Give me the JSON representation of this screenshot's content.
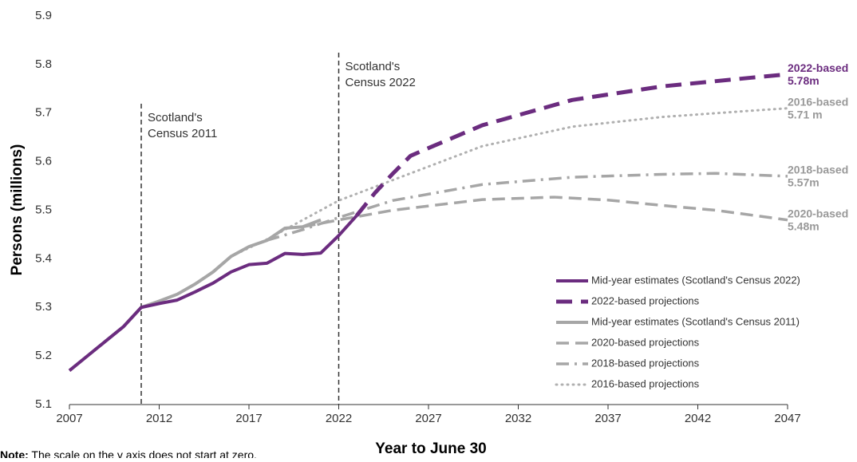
{
  "chart_data": {
    "type": "line",
    "y_label": "Persons (millions)",
    "x_label": "Year to June 30",
    "note_label": "Note:",
    "note": "The scale on the y axis does not start at zero.",
    "xlim": [
      2007,
      2047
    ],
    "xticks": [
      2007,
      2012,
      2017,
      2022,
      2027,
      2032,
      2037,
      2042,
      2047
    ],
    "ylim": [
      5.1,
      5.9
    ],
    "yticks": [
      5.1,
      5.2,
      5.3,
      5.4,
      5.5,
      5.6,
      5.7,
      5.8,
      5.9
    ],
    "grid": false,
    "annotations": [
      {
        "x": 2011,
        "lines": [
          "Scotland's",
          "Census 2011"
        ]
      },
      {
        "x": 2022,
        "lines": [
          "Scotland's",
          "Census 2022"
        ]
      }
    ],
    "series": [
      {
        "name": "Mid-year estimates (Scotland's Census 2022)",
        "color": "#6b2c7f",
        "style": "solid",
        "x": [
          2007,
          2008,
          2009,
          2010,
          2011,
          2012,
          2013,
          2014,
          2015,
          2016,
          2017,
          2018,
          2019,
          2020,
          2021,
          2022,
          2023
        ],
        "values": [
          5.17,
          5.2,
          5.23,
          5.26,
          5.3,
          5.308,
          5.315,
          5.332,
          5.35,
          5.373,
          5.388,
          5.391,
          5.411,
          5.409,
          5.412,
          5.448,
          5.489
        ]
      },
      {
        "name": "2022-based projections",
        "color": "#6b2c7f",
        "style": "dash-thick",
        "x": [
          2023,
          2024,
          2025,
          2026,
          2027,
          2030,
          2035,
          2040,
          2045,
          2047
        ],
        "values": [
          5.489,
          5.535,
          5.575,
          5.612,
          5.628,
          5.675,
          5.727,
          5.755,
          5.773,
          5.78
        ],
        "end_label": [
          "2022-based",
          "5.78m"
        ]
      },
      {
        "name": "Mid-year estimates (Scotland's Census 2011)",
        "color": "#a6a6a6",
        "style": "solid",
        "x": [
          2007,
          2008,
          2009,
          2010,
          2011,
          2012,
          2013,
          2014,
          2015,
          2016,
          2017,
          2018,
          2019,
          2020,
          2021
        ],
        "values": [
          5.17,
          5.2,
          5.23,
          5.26,
          5.3,
          5.313,
          5.327,
          5.348,
          5.373,
          5.405,
          5.425,
          5.438,
          5.463,
          5.466,
          5.48
        ]
      },
      {
        "name": "2020-based projections",
        "color": "#a6a6a6",
        "style": "dash",
        "x": [
          2020,
          2022,
          2025,
          2030,
          2034,
          2037,
          2040,
          2043,
          2047
        ],
        "values": [
          5.466,
          5.48,
          5.5,
          5.522,
          5.527,
          5.521,
          5.51,
          5.5,
          5.48
        ],
        "end_label": [
          "2020-based",
          "5.48m"
        ]
      },
      {
        "name": "2018-based projections",
        "color": "#a6a6a6",
        "style": "dashdot",
        "x": [
          2018,
          2020,
          2022,
          2025,
          2030,
          2035,
          2040,
          2043,
          2047
        ],
        "values": [
          5.438,
          5.46,
          5.485,
          5.52,
          5.553,
          5.568,
          5.574,
          5.576,
          5.57
        ],
        "end_label": [
          "2018-based",
          "5.57m"
        ]
      },
      {
        "name": "2016-based projections",
        "color": "#b0b0b0",
        "style": "dot",
        "x": [
          2016,
          2018,
          2020,
          2022,
          2025,
          2030,
          2035,
          2040,
          2045,
          2047
        ],
        "values": [
          5.405,
          5.44,
          5.48,
          5.52,
          5.562,
          5.632,
          5.672,
          5.692,
          5.705,
          5.71
        ],
        "end_label": [
          "2016-based",
          "5.71 m"
        ]
      }
    ]
  }
}
